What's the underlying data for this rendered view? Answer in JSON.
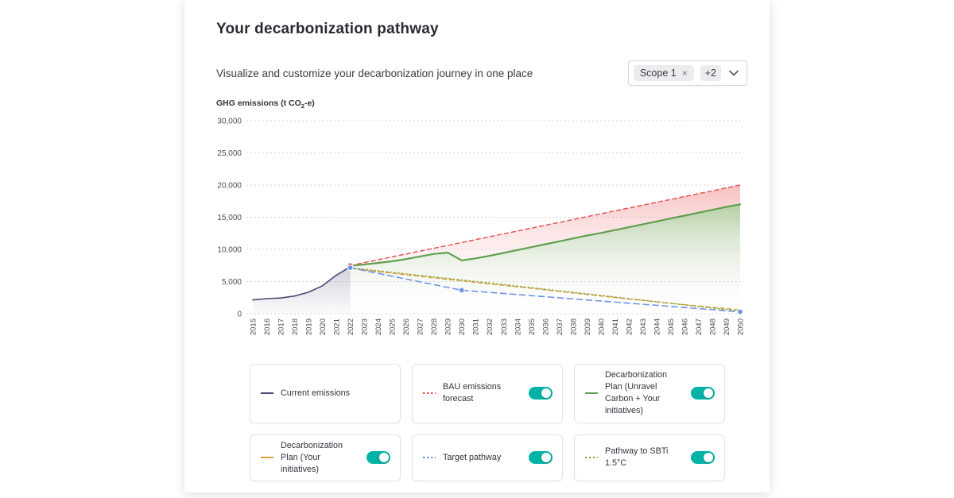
{
  "page": {
    "title": "Your decarbonization pathway",
    "subtitle": "Visualize and customize your decarbonization journey in one place"
  },
  "scope_filter": {
    "chip": "Scope 1",
    "chip_close": "×",
    "more": "+2"
  },
  "colors": {
    "accent_teal": "#00b3a6",
    "current": "#4a4a70",
    "bau": "#e25757",
    "plan": "#61a050",
    "initiatives": "#dd9f40",
    "sbti": "#9aa845",
    "target": "#6d93e8"
  },
  "chart_data": {
    "type": "line",
    "title": "",
    "xlabel": "",
    "ylabel": "GHG emissions (t CO₂-e)",
    "ylabel_parts": {
      "pre": "GHG emissions (t CO",
      "sub": "2",
      "post": "-e)"
    },
    "ylim": [
      0,
      30000
    ],
    "grid": "horizontal-dotted",
    "legend_position": "bottom",
    "yticks": [
      0,
      5000,
      10000,
      15000,
      20000,
      25000,
      30000
    ],
    "ytick_labels": [
      "0",
      "5,000",
      "10,000",
      "15,000",
      "20,000",
      "25,000",
      "30,000"
    ],
    "years": [
      2015,
      2016,
      2017,
      2018,
      2019,
      2020,
      2021,
      2022,
      2023,
      2024,
      2025,
      2026,
      2027,
      2028,
      2029,
      2030,
      2031,
      2032,
      2033,
      2034,
      2035,
      2036,
      2037,
      2038,
      2039,
      2040,
      2041,
      2042,
      2043,
      2044,
      2045,
      2046,
      2047,
      2048,
      2049,
      2050
    ],
    "series": [
      {
        "id": "current",
        "name": "Current emissions",
        "color": "#4a4a70",
        "width": 1.6,
        "dash": null,
        "area": "baseline",
        "area_gradient": "gradCurrent",
        "points": [
          [
            2015,
            2150
          ],
          [
            2016,
            2350
          ],
          [
            2017,
            2450
          ],
          [
            2018,
            2750
          ],
          [
            2019,
            3350
          ],
          [
            2020,
            4350
          ],
          [
            2021,
            6000
          ],
          [
            2022,
            7300
          ]
        ],
        "dots": []
      },
      {
        "id": "plan",
        "name": "Decarbonization Plan (Unravel Carbon + Your initiatives)",
        "color": "#61a050",
        "width": 2.2,
        "dash": null,
        "area": "baseline",
        "area_gradient": "gradGreen",
        "points": [
          [
            2022,
            7450
          ],
          [
            2023,
            7650
          ],
          [
            2024,
            7900
          ],
          [
            2025,
            8150
          ],
          [
            2026,
            8500
          ],
          [
            2027,
            8900
          ],
          [
            2028,
            9300
          ],
          [
            2029,
            9500
          ],
          [
            2030,
            8300
          ],
          [
            2031,
            8600
          ],
          [
            2032,
            9000
          ],
          [
            2033,
            9450
          ],
          [
            2034,
            9900
          ],
          [
            2035,
            10350
          ],
          [
            2036,
            10800
          ],
          [
            2037,
            11250
          ],
          [
            2038,
            11700
          ],
          [
            2039,
            12150
          ],
          [
            2040,
            12550
          ],
          [
            2041,
            13000
          ],
          [
            2042,
            13450
          ],
          [
            2043,
            13900
          ],
          [
            2044,
            14350
          ],
          [
            2045,
            14800
          ],
          [
            2046,
            15250
          ],
          [
            2047,
            15700
          ],
          [
            2048,
            16150
          ],
          [
            2049,
            16600
          ],
          [
            2050,
            17000
          ]
        ],
        "dots": []
      },
      {
        "id": "bau",
        "name": "BAU emissions forecast",
        "color": "#e25757",
        "width": 1.5,
        "dash": "5 4",
        "area": "band:plan",
        "area_gradient": "gradRed",
        "points": [
          [
            2022,
            7500
          ],
          [
            2050,
            20000
          ]
        ],
        "dots": [
          [
            2022,
            7500
          ]
        ]
      },
      {
        "id": "initiatives",
        "name": "Decarbonization Plan (Your initiatives)",
        "color": "#dd9f40",
        "width": 1.4,
        "dash": "5 4",
        "area": null,
        "area_gradient": null,
        "points": [
          [
            2022,
            7050
          ],
          [
            2026,
            6050
          ],
          [
            2030,
            5100
          ],
          [
            2035,
            3950
          ],
          [
            2040,
            2750
          ],
          [
            2045,
            1600
          ],
          [
            2050,
            600
          ]
        ],
        "dots": []
      },
      {
        "id": "sbti",
        "name": "Pathway to SBTi 1.5°C",
        "color": "#9aa845",
        "width": 1.4,
        "dash": "2 3",
        "area": null,
        "area_gradient": null,
        "points": [
          [
            2022,
            7150
          ],
          [
            2030,
            5250
          ],
          [
            2040,
            2850
          ],
          [
            2050,
            400
          ]
        ],
        "dots": []
      },
      {
        "id": "target",
        "name": "Target pathway",
        "color": "#6d93e8",
        "width": 1.6,
        "dash": "7 5",
        "area": null,
        "area_gradient": null,
        "points": [
          [
            2022,
            7150
          ],
          [
            2030,
            3650
          ],
          [
            2050,
            300
          ]
        ],
        "dots": [
          [
            2022,
            7150
          ],
          [
            2030,
            3650
          ],
          [
            2050,
            300
          ]
        ]
      }
    ]
  },
  "legend": {
    "rows": [
      [
        {
          "label": "Current emissions",
          "swatch_color": "#4a4a70",
          "swatch_dash": null,
          "toggle": null
        },
        {
          "label": "BAU emissions forecast",
          "swatch_color": "#e25757",
          "swatch_dash": "2.5 2.5",
          "toggle": true
        },
        {
          "label": "Decarbonization Plan (Unravel Carbon + Your initiatives)",
          "swatch_color": "#61a050",
          "swatch_dash": null,
          "toggle": true
        }
      ],
      [
        {
          "label": "Decarbonization Plan (Your initiatives)",
          "swatch_color": "#dd9f40",
          "swatch_dash": null,
          "toggle": true
        },
        {
          "label": "Target pathway",
          "swatch_color": "#6d93e8",
          "swatch_dash": "2.5 2.5",
          "toggle": true
        },
        {
          "label": "Pathway to SBTi 1.5°C",
          "swatch_color": "#9aa845",
          "swatch_dash": "2.5 2.5",
          "toggle": true
        }
      ]
    ]
  }
}
